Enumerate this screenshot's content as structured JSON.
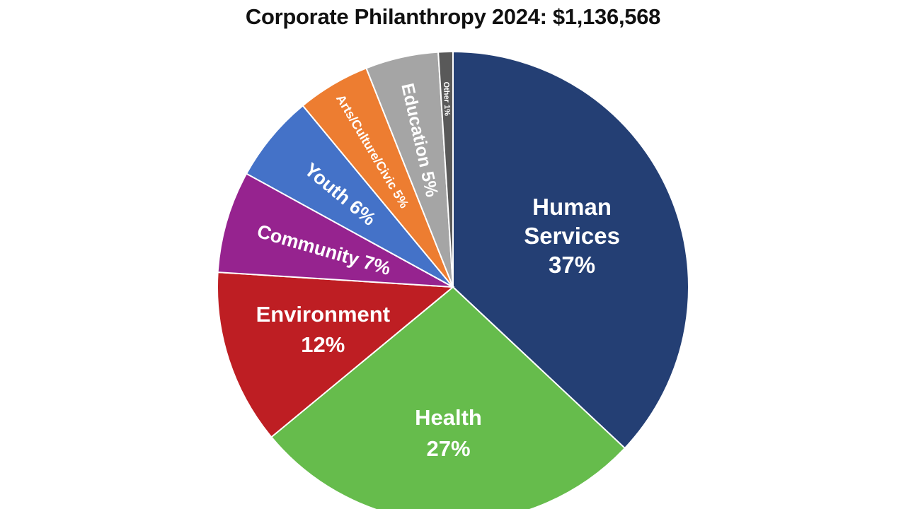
{
  "chart_data": {
    "type": "pie",
    "title": "Corporate Philanthropy 2024: $1,136,568",
    "slices": [
      {
        "label": "Human Services",
        "value": 37,
        "display": "37%",
        "color": "#243F74"
      },
      {
        "label": "Health",
        "value": 27,
        "display": "27%",
        "color": "#66BC4C"
      },
      {
        "label": "Environment",
        "value": 12,
        "display": "12%",
        "color": "#BE1E23"
      },
      {
        "label": "Community",
        "value": 7,
        "display": "7%",
        "color": "#96238F"
      },
      {
        "label": "Youth",
        "value": 6,
        "display": "6%",
        "color": "#4472C8"
      },
      {
        "label": "Arts/Culture/Civic",
        "value": 5,
        "display": "5%",
        "color": "#ED7D31"
      },
      {
        "label": "Education",
        "value": 5,
        "display": "5%",
        "color": "#A5A5A5"
      },
      {
        "label": "Other",
        "value": 1,
        "display": "1%",
        "color": "#595959"
      }
    ]
  }
}
